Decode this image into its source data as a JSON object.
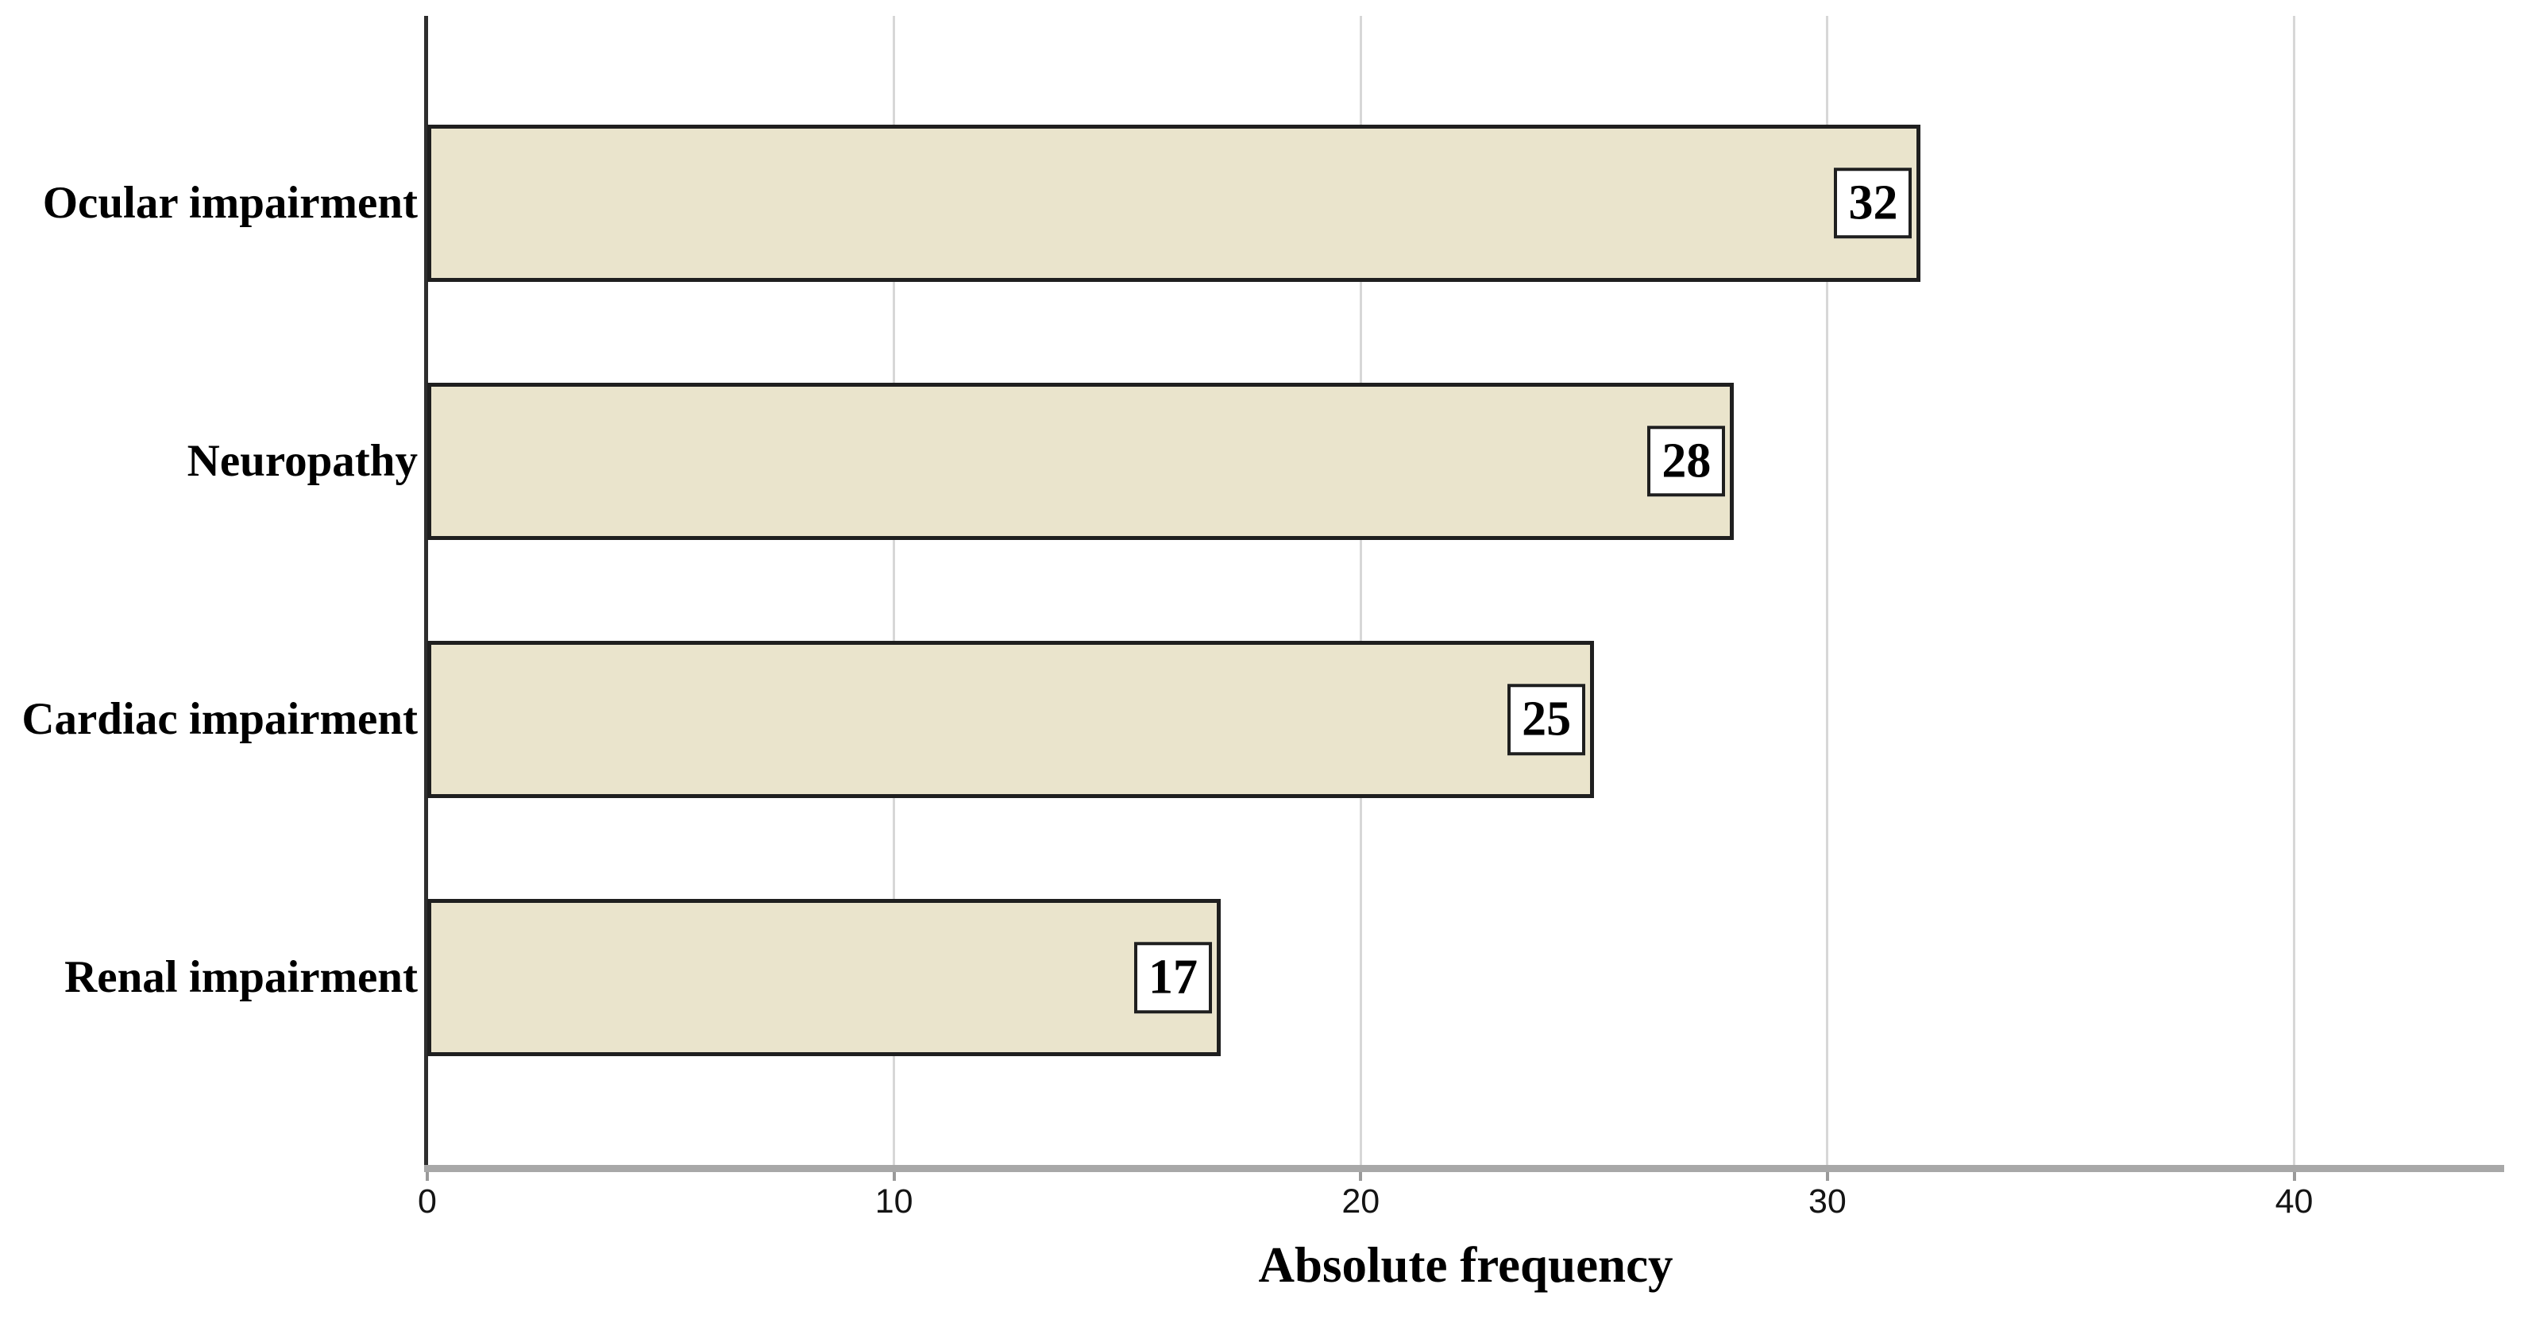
{
  "chart_data": {
    "type": "bar",
    "orientation": "horizontal",
    "title": "",
    "xlabel": "Absolute frequency",
    "ylabel": "",
    "categories": [
      "Ocular impairment",
      "Neuropathy",
      "Cardiac impairment",
      "Renal impairment"
    ],
    "values": [
      32,
      28,
      25,
      17
    ],
    "value_labels": [
      "32",
      "28",
      "25",
      "17"
    ],
    "x_ticks": [
      "0",
      "10",
      "20",
      "30",
      "40"
    ],
    "x_tick_values": [
      0,
      10,
      20,
      30,
      40
    ],
    "xlim": [
      0,
      44.5
    ],
    "grid": "vertical light-gray gridlines at each x tick",
    "legend": "none",
    "colors": {
      "background": "#FFFFFF",
      "bar_fill": "#EAE4CC",
      "bar_border": "#1F1F1F",
      "value_box_fill": "#FFFFFF",
      "value_box_border": "#1F1F1F",
      "gridline": "#D7D7D7",
      "baseline": "#A8A8A8",
      "category_axis_line": "#2E2E2E",
      "tick_mark": "#9A9A9A",
      "text": "#000000",
      "tick_text": "#141414"
    }
  }
}
